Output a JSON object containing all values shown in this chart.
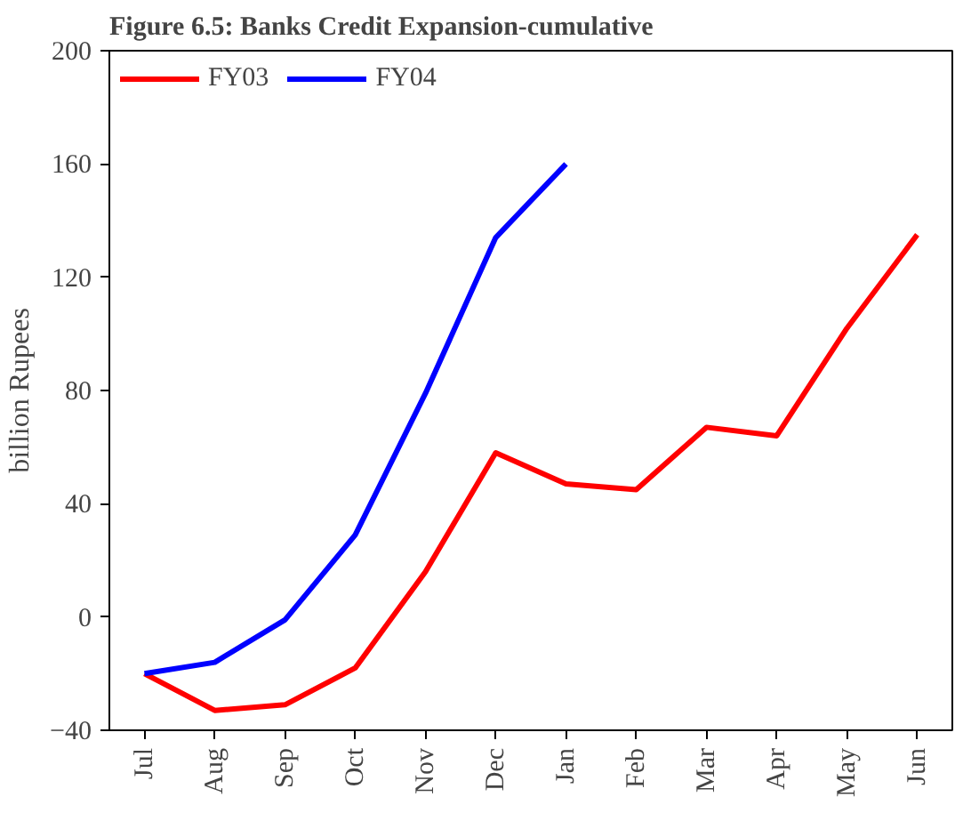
{
  "chart_data": {
    "type": "line",
    "title": "Figure 6.5: Banks Credit Expansion-cumulative",
    "ylabel": "billion Rupees",
    "categories": [
      "Jul",
      "Aug",
      "Sep",
      "Oct",
      "Nov",
      "Dec",
      "Jan",
      "Feb",
      "Mar",
      "Apr",
      "May",
      "Jun"
    ],
    "series": [
      {
        "name": "FY03",
        "color": "#ff0000",
        "values": [
          -20,
          -33,
          -31,
          -18,
          16,
          58,
          47,
          45,
          67,
          64,
          102,
          135
        ]
      },
      {
        "name": "FY04",
        "color": "#0000ff",
        "values": [
          -20,
          -16,
          -1,
          29,
          79,
          134,
          160,
          null,
          null,
          null,
          null,
          null
        ]
      }
    ],
    "ylim": [
      -40,
      200
    ],
    "yticks": [
      -40,
      0,
      40,
      80,
      120,
      160,
      200
    ],
    "grid": false,
    "legend": "top left",
    "marker": "none",
    "line_style": "solid"
  }
}
